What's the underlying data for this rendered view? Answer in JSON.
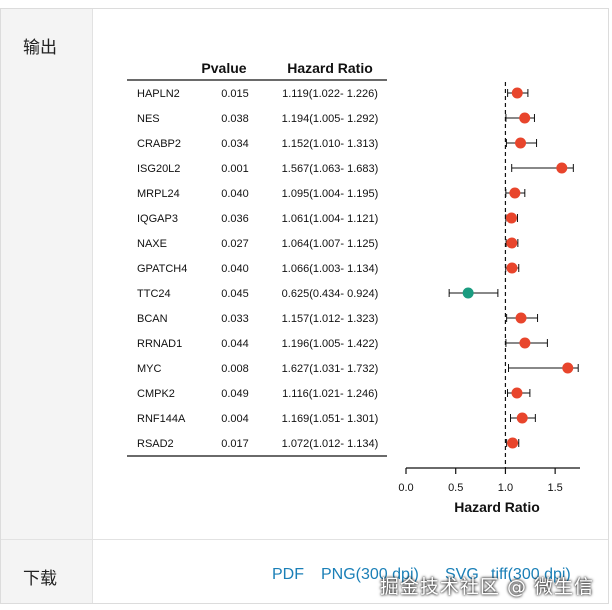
{
  "panel": {
    "output_label": "输出",
    "download_label": "下载",
    "downloads": [
      "PDF",
      "PNG(300 dpi)",
      "SVG",
      "tiff(300 dpi)"
    ],
    "watermark": "掘金技术社区 @ 微生信"
  },
  "chart_data": {
    "type": "forest",
    "table_headers": {
      "gene": "",
      "pvalue": "Pvalue",
      "hr": "Hazard Ratio"
    },
    "xlabel": "Hazard Ratio",
    "xlim": [
      0.0,
      1.75
    ],
    "xticks": [
      "0.0",
      "0.5",
      "1.0",
      "1.5"
    ],
    "reference_line": 1.0,
    "colors": {
      "risk": "#e8452c",
      "protective": "#1a9c80"
    },
    "rows": [
      {
        "gene": "HAPLN2",
        "pvalue": "0.015",
        "hr_text": "1.119(1.022- 1.226)",
        "hr": 1.119,
        "lo": 1.022,
        "hi": 1.226
      },
      {
        "gene": "NES",
        "pvalue": "0.038",
        "hr_text": "1.194(1.005- 1.292)",
        "hr": 1.194,
        "lo": 1.005,
        "hi": 1.292
      },
      {
        "gene": "CRABP2",
        "pvalue": "0.034",
        "hr_text": "1.152(1.010- 1.313)",
        "hr": 1.152,
        "lo": 1.01,
        "hi": 1.313
      },
      {
        "gene": "ISG20L2",
        "pvalue": "0.001",
        "hr_text": "1.567(1.063- 1.683)",
        "hr": 1.567,
        "lo": 1.063,
        "hi": 1.683
      },
      {
        "gene": "MRPL24",
        "pvalue": "0.040",
        "hr_text": "1.095(1.004- 1.195)",
        "hr": 1.095,
        "lo": 1.004,
        "hi": 1.195
      },
      {
        "gene": "IQGAP3",
        "pvalue": "0.036",
        "hr_text": "1.061(1.004- 1.121)",
        "hr": 1.061,
        "lo": 1.004,
        "hi": 1.121
      },
      {
        "gene": "NAXE",
        "pvalue": "0.027",
        "hr_text": "1.064(1.007- 1.125)",
        "hr": 1.064,
        "lo": 1.007,
        "hi": 1.125
      },
      {
        "gene": "GPATCH4",
        "pvalue": "0.040",
        "hr_text": "1.066(1.003- 1.134)",
        "hr": 1.066,
        "lo": 1.003,
        "hi": 1.134
      },
      {
        "gene": "TTC24",
        "pvalue": "0.045",
        "hr_text": "0.625(0.434- 0.924)",
        "hr": 0.625,
        "lo": 0.434,
        "hi": 0.924
      },
      {
        "gene": "BCAN",
        "pvalue": "0.033",
        "hr_text": "1.157(1.012- 1.323)",
        "hr": 1.157,
        "lo": 1.012,
        "hi": 1.323
      },
      {
        "gene": "RRNAD1",
        "pvalue": "0.044",
        "hr_text": "1.196(1.005- 1.422)",
        "hr": 1.196,
        "lo": 1.005,
        "hi": 1.422
      },
      {
        "gene": "MYC",
        "pvalue": "0.008",
        "hr_text": "1.627(1.031- 1.732)",
        "hr": 1.627,
        "lo": 1.031,
        "hi": 1.732
      },
      {
        "gene": "CMPK2",
        "pvalue": "0.049",
        "hr_text": "1.116(1.021- 1.246)",
        "hr": 1.116,
        "lo": 1.021,
        "hi": 1.246
      },
      {
        "gene": "RNF144A",
        "pvalue": "0.004",
        "hr_text": "1.169(1.051- 1.301)",
        "hr": 1.169,
        "lo": 1.051,
        "hi": 1.301
      },
      {
        "gene": "RSAD2",
        "pvalue": "0.017",
        "hr_text": "1.072(1.012- 1.134)",
        "hr": 1.072,
        "lo": 1.012,
        "hi": 1.134
      }
    ]
  }
}
